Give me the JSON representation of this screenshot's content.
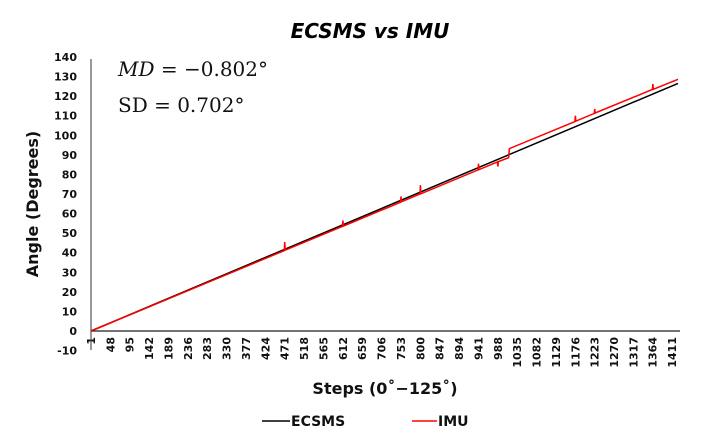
{
  "chart_data": {
    "type": "line",
    "title": "ECSMS vs IMU",
    "xlabel": "Steps (0˚−125˚)",
    "ylabel": "Angle (Degrees)",
    "ylim": [
      -10,
      140
    ],
    "yticks": [
      -10,
      0,
      10,
      20,
      30,
      40,
      50,
      60,
      70,
      80,
      90,
      100,
      110,
      120,
      130,
      140
    ],
    "xticks": [
      "1",
      "48",
      "95",
      "142",
      "189",
      "236",
      "283",
      "330",
      "377",
      "424",
      "471",
      "518",
      "565",
      "612",
      "659",
      "706",
      "753",
      "800",
      "847",
      "894",
      "941",
      "988",
      "1035",
      "1082",
      "1129",
      "1176",
      "1223",
      "1270",
      "1317",
      "1364",
      "1411"
    ],
    "xlim": [
      1,
      1425
    ],
    "grid": false,
    "legend_position": "bottom",
    "annotations": {
      "md_label": "MD",
      "md_value": " = −0.802°",
      "sd": "SD = 0.702°"
    },
    "series": [
      {
        "name": "ECSMS",
        "color": "#000000",
        "points": [
          [
            1,
            0
          ],
          [
            1425,
            126.5
          ]
        ]
      },
      {
        "name": "IMU",
        "color": "#ff0000",
        "points": [
          [
            1,
            0
          ],
          [
            300,
            26.2
          ],
          [
            470,
            41.1
          ],
          [
            471,
            45.5
          ],
          [
            472,
            41.3
          ],
          [
            611,
            53.5
          ],
          [
            612,
            56.5
          ],
          [
            613,
            53.6
          ],
          [
            752,
            65.8
          ],
          [
            753,
            68.8
          ],
          [
            754,
            66
          ],
          [
            799,
            70
          ],
          [
            800,
            74.5
          ],
          [
            801,
            70.1
          ],
          [
            940,
            82.3
          ],
          [
            941,
            85.5
          ],
          [
            942,
            82.4
          ],
          [
            987,
            86.4
          ],
          [
            988,
            84
          ],
          [
            989,
            86.5
          ],
          [
            1012,
            88.4
          ],
          [
            1014,
            88.5
          ],
          [
            1016,
            93.2
          ],
          [
            1175,
            107
          ],
          [
            1176,
            110
          ],
          [
            1177,
            107.2
          ],
          [
            1222,
            111.2
          ],
          [
            1223,
            113.5
          ],
          [
            1224,
            111.4
          ],
          [
            1363,
            123.4
          ],
          [
            1364,
            126.2
          ],
          [
            1365,
            123.5
          ],
          [
            1425,
            128.6
          ]
        ]
      }
    ]
  }
}
